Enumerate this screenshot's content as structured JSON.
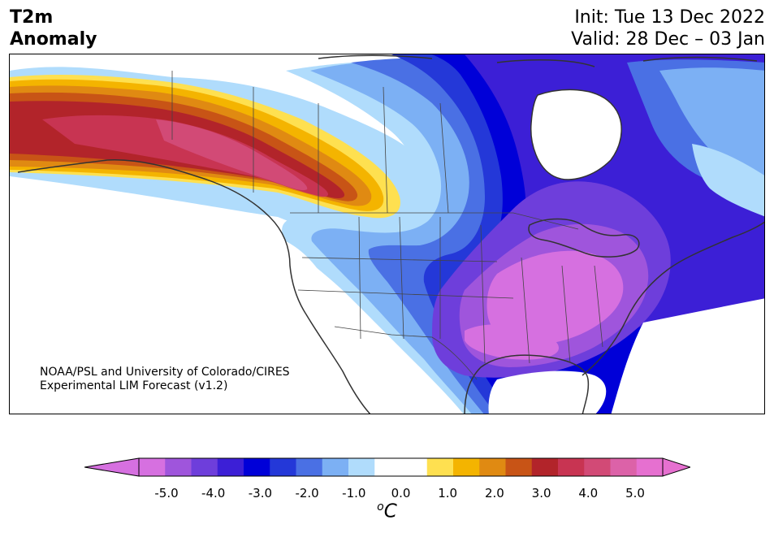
{
  "header": {
    "title_line1": "T2m",
    "title_line2": "Anomaly",
    "init_label": "Init: Tue 13 Dec 2022",
    "valid_label": "Valid: 28 Dec – 03 Jan"
  },
  "credit": {
    "line1": "NOAA/PSL and University of Colorado/CIRES",
    "line2": "Experimental LIM Forecast (v1.2)"
  },
  "colorbar": {
    "units_sup": "o",
    "units_main": "C",
    "ticks": [
      "-5.0",
      "-4.0",
      "-3.0",
      "-2.0",
      "-1.0",
      "0.0",
      "1.0",
      "2.0",
      "3.0",
      "4.0",
      "5.0"
    ],
    "colors": [
      "#d670e0",
      "#9f55dc",
      "#6e3edb",
      "#3c1fd6",
      "#0000d8",
      "#2438d8",
      "#4a70e4",
      "#7cb0f4",
      "#b0dcfc",
      "#ffffff",
      "#ffffff",
      "#fee050",
      "#f4b400",
      "#e08a12",
      "#c85416",
      "#b2242a",
      "#c83452",
      "#d24a76",
      "#dc62a8",
      "#e670d0"
    ],
    "under_color": "#d670e0",
    "over_color": "#e670d0"
  },
  "map": {
    "land_outline_color": "#333333",
    "regions": [
      {
        "name": "cold-atlantic-canada",
        "color": "#4a70e4"
      },
      {
        "name": "warm-alaska-yukon",
        "color": "#c83452"
      },
      {
        "name": "cold-us-midwest",
        "color": "#9f55dc"
      }
    ]
  }
}
